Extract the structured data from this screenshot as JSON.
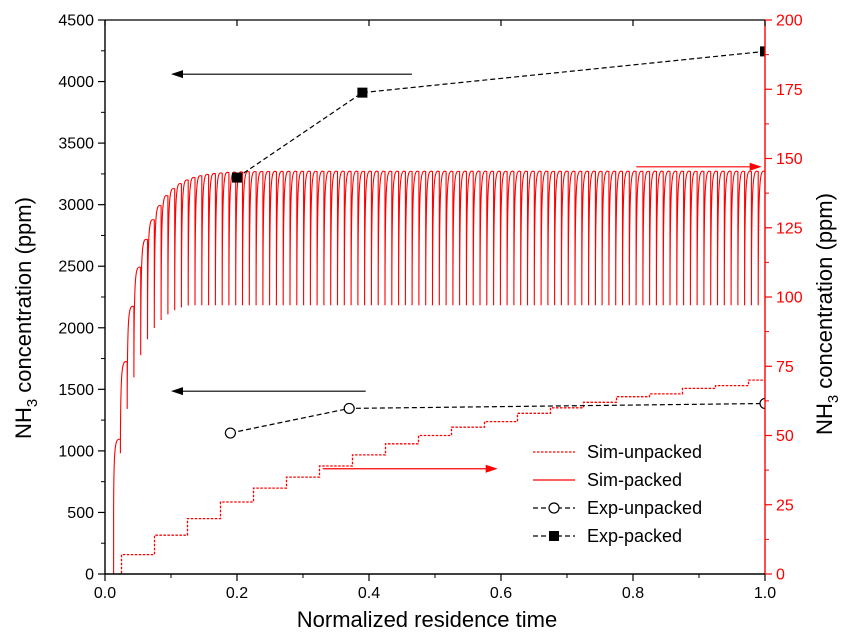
{
  "chart_data": {
    "type": "line",
    "xlabel": "Normalized residence time",
    "ylabel_left": {
      "main": "NH",
      "sub": "3",
      "rest": " concentration (ppm)"
    },
    "ylabel_right": {
      "main": "NH",
      "sub": "3",
      "rest": " concentration (ppm)"
    },
    "xlim": [
      0.0,
      1.0
    ],
    "ylim_left": [
      0,
      4500
    ],
    "ylim_right": [
      0,
      200
    ],
    "x_ticks": [
      0.0,
      0.2,
      0.4,
      0.6,
      0.8,
      1.0
    ],
    "x_tick_labels": [
      "0.0",
      "0.2",
      "0.4",
      "0.6",
      "0.8",
      "1.0"
    ],
    "y_left_ticks": [
      0,
      500,
      1000,
      1500,
      2000,
      2500,
      3000,
      3500,
      4000,
      4500
    ],
    "y_left_tick_labels": [
      "0",
      "500",
      "1000",
      "1500",
      "2000",
      "2500",
      "3000",
      "3500",
      "4000",
      "4500"
    ],
    "y_right_ticks": [
      0,
      25,
      50,
      75,
      100,
      125,
      150,
      175,
      200
    ],
    "y_right_tick_labels": [
      "0",
      "25",
      "50",
      "75",
      "100",
      "125",
      "150",
      "175",
      "200"
    ],
    "colors": {
      "axis_left": "#000000",
      "axis_right": "#ff0000",
      "sim": "#ff0000",
      "exp": "#000000"
    },
    "grid": false,
    "legend_position": "lower-right",
    "series": [
      {
        "name": "Sim-unpacked",
        "axis": "right",
        "style": "dotted-steps",
        "color": "#ff0000",
        "step_x": [
          0.025,
          0.075,
          0.125,
          0.175,
          0.225,
          0.275,
          0.325,
          0.375,
          0.425,
          0.475,
          0.525,
          0.575,
          0.625,
          0.675,
          0.725,
          0.775,
          0.825,
          0.875,
          0.925,
          0.975
        ],
        "plateau_y": [
          7,
          14,
          20,
          26,
          31,
          35,
          39,
          43,
          47,
          50,
          53,
          55,
          58,
          60,
          62,
          64,
          65,
          67,
          68,
          70
        ],
        "end_x": 1.0
      },
      {
        "name": "Sim-packed",
        "axis": "right",
        "style": "oscillating",
        "color": "#ff0000",
        "x_start": 0.013,
        "x_end": 1.0,
        "cycles": 96,
        "peak_max": 146,
        "trough_max": 97,
        "peak_initial": 35,
        "trough_initial": 10,
        "rise_constant": 0.03
      },
      {
        "name": "Exp-unpacked",
        "axis": "left",
        "marker": "open-circle",
        "color": "#000000",
        "x": [
          0.19,
          0.37,
          1.0
        ],
        "y": [
          1145,
          1345,
          1385
        ]
      },
      {
        "name": "Exp-packed",
        "axis": "left",
        "marker": "filled-square",
        "color": "#000000",
        "x": [
          0.2,
          0.39,
          1.0
        ],
        "y": [
          3220,
          3910,
          4245
        ]
      }
    ],
    "annotations": [
      {
        "type": "arrow",
        "direction": "left",
        "color": "#000000",
        "axis": "left",
        "x_from": 0.465,
        "x_to": 0.1,
        "y": 4060
      },
      {
        "type": "arrow",
        "direction": "left",
        "color": "#000000",
        "axis": "left",
        "x_from": 0.395,
        "x_to": 0.1,
        "y": 1485
      },
      {
        "type": "arrow",
        "direction": "right",
        "color": "#ff0000",
        "axis": "right",
        "x_from": 0.805,
        "x_to": 0.995,
        "y": 147
      },
      {
        "type": "arrow",
        "direction": "right",
        "color": "#ff0000",
        "axis": "right",
        "x_from": 0.33,
        "x_to": 0.595,
        "y": 38
      }
    ]
  }
}
